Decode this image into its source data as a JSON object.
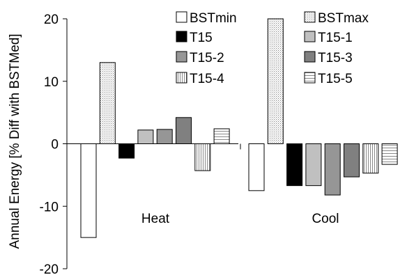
{
  "chart_data": {
    "type": "bar",
    "title": "",
    "xlabel": "",
    "ylabel": "Annual Energy [% Diff with BSTMed]",
    "ylim": [
      -20,
      20
    ],
    "yticks": [
      -20,
      -10,
      0,
      10,
      20
    ],
    "ytick_labels": [
      "-20",
      "-10",
      "0",
      "10",
      "20"
    ],
    "grid": false,
    "legend_position": "top-right",
    "categories": [
      "Heat",
      "Cool"
    ],
    "series": [
      {
        "name": "BSTmin",
        "values": [
          -15.0,
          -7.5
        ],
        "fill": "white"
      },
      {
        "name": "BSTmax",
        "values": [
          13.0,
          20.0
        ],
        "fill": "dots"
      },
      {
        "name": "T15",
        "values": [
          -2.3,
          -6.7
        ],
        "fill": "black"
      },
      {
        "name": "T15-1",
        "values": [
          2.2,
          -6.7
        ],
        "fill": "lightgray"
      },
      {
        "name": "T15-2",
        "values": [
          2.3,
          -8.2
        ],
        "fill": "midgray"
      },
      {
        "name": "T15-3",
        "values": [
          4.2,
          -5.3
        ],
        "fill": "darkgray"
      },
      {
        "name": "T15-4",
        "values": [
          -4.3,
          -4.7
        ],
        "fill": "vlines"
      },
      {
        "name": "T15-5",
        "values": [
          2.4,
          -3.3
        ],
        "fill": "hlines"
      }
    ],
    "colors": {
      "black": "#000000",
      "lightgray": "#c0c0c0",
      "midgray": "#969696",
      "darkgray": "#808080",
      "pattern_bg": "#ffffff",
      "dot": "#7f7f7f",
      "line": "#888888",
      "axis": "#000000"
    }
  }
}
